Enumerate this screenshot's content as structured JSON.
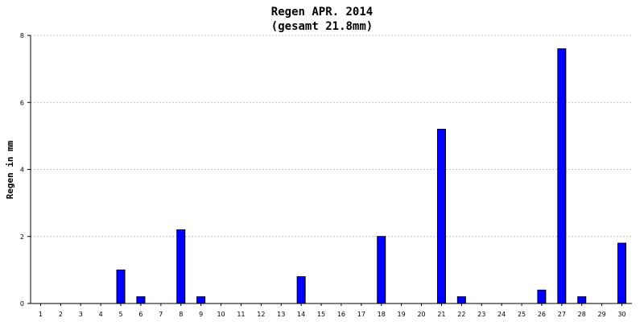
{
  "chart_data": {
    "type": "bar",
    "title": "Regen APR. 2014",
    "subtitle": "(gesamt 21.8mm)",
    "xlabel": "",
    "ylabel": "Regen in mm",
    "ylim": [
      0,
      8
    ],
    "yticks": [
      "0",
      "2",
      "4",
      "6",
      "8"
    ],
    "grid": true,
    "categories": [
      "1",
      "2",
      "3",
      "4",
      "5",
      "6",
      "7",
      "8",
      "9",
      "10",
      "11",
      "12",
      "13",
      "14",
      "15",
      "16",
      "17",
      "18",
      "19",
      "20",
      "21",
      "22",
      "23",
      "24",
      "25",
      "26",
      "27",
      "28",
      "29",
      "30"
    ],
    "values": [
      0,
      0,
      0,
      0,
      1.0,
      0.2,
      0,
      2.2,
      0.2,
      0,
      0,
      0,
      0,
      0.8,
      0,
      0,
      0,
      2.0,
      0,
      0,
      5.2,
      0.2,
      0,
      0,
      0,
      0.4,
      7.6,
      0.2,
      0,
      1.8
    ],
    "bar_color": "#0000ff",
    "bar_border": "#000000",
    "grid_color": "#c0c0c0"
  }
}
